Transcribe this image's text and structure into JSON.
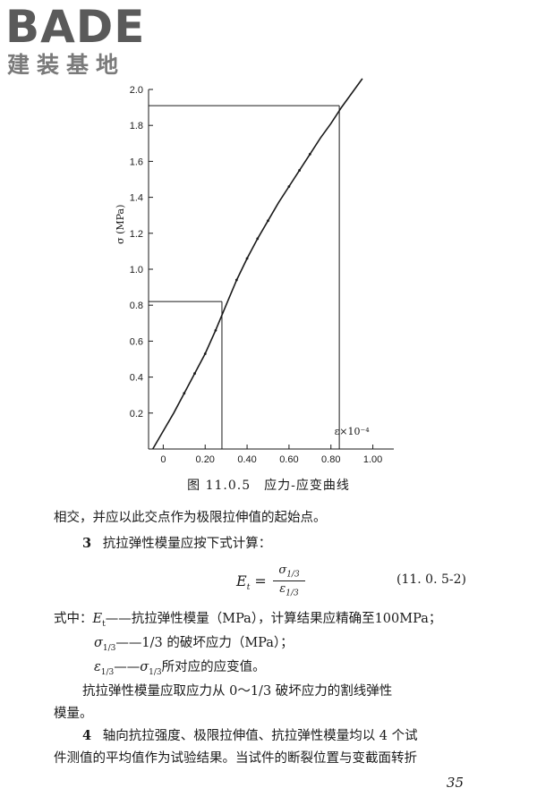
{
  "logo": {
    "main": "BADE",
    "sub": "建装基地"
  },
  "chart_data": {
    "type": "line",
    "ylabel": "σ (MPa)",
    "xlabel": "ε×10⁻⁴",
    "xlim": [
      -0.07,
      1.1
    ],
    "ylim": [
      0,
      2.0
    ],
    "x_ticks": [
      "0",
      "0.20",
      "0.40",
      "0.60",
      "0.80",
      "1.00"
    ],
    "x_tick_values": [
      0,
      0.2,
      0.4,
      0.6,
      0.8,
      1.0
    ],
    "y_ticks": [
      "0.2",
      "0.4",
      "0.6",
      "0.8",
      "1.0",
      "1.2",
      "1.4",
      "1.6",
      "1.8",
      "2.0"
    ],
    "y_tick_values": [
      0.2,
      0.4,
      0.6,
      0.8,
      1.0,
      1.2,
      1.4,
      1.6,
      1.8,
      2.0
    ],
    "series": [
      {
        "x": [
          -0.05,
          0.0,
          0.05,
          0.1,
          0.15,
          0.2,
          0.25,
          0.3,
          0.35,
          0.4,
          0.45,
          0.5,
          0.55,
          0.6,
          0.65,
          0.7,
          0.75,
          0.8,
          0.85,
          0.9,
          0.95
        ],
        "y": [
          0.0,
          0.1,
          0.2,
          0.31,
          0.42,
          0.53,
          0.66,
          0.8,
          0.94,
          1.06,
          1.17,
          1.27,
          1.37,
          1.46,
          1.55,
          1.64,
          1.73,
          1.81,
          1.9,
          1.98,
          2.06
        ]
      }
    ],
    "markers": {
      "x": [
        0.1,
        0.15,
        0.2,
        0.25,
        0.35,
        0.4,
        0.45,
        0.5,
        0.6,
        0.65,
        0.7
      ],
      "y": [
        0.31,
        0.42,
        0.53,
        0.66,
        0.94,
        1.06,
        1.17,
        1.27,
        1.46,
        1.55,
        1.64
      ]
    },
    "reference_points": [
      {
        "x": 0.28,
        "y": 0.82
      },
      {
        "x": 0.84,
        "y": 1.91
      }
    ],
    "grid": false
  },
  "caption": "图 11.0.5　应力-应变曲线",
  "text": {
    "line1": "相交，并应以此交点作为极限拉伸值的起始点。",
    "item3_num": "3",
    "item3_text": "抗拉弹性模量应按下式计算：",
    "eq_lhs": "E",
    "eq_lhs_sub": "t",
    "eq_eq": " =",
    "eq_num": "σ",
    "eq_num_sub": "1/3",
    "eq_den": "ε",
    "eq_den_sub": "1/3",
    "eq_no": "(11. 0. 5-2)",
    "def1_prefix": "式中：",
    "def1_sym": "E",
    "def1_sym_sub": "t",
    "def1_text": "——抗拉弹性模量（MPa），计算结果应精确至100MPa；",
    "def2_sym": "σ",
    "def2_sym_sub": "1/3",
    "def2_text": "——1/3 的破坏应力（MPa）；",
    "def3_sym": "ε",
    "def3_sym_sub": "1/3",
    "def3_mid": "——",
    "def3_sym2": "σ",
    "def3_sym2_sub": "1/3",
    "def3_text": "所对应的应变值。",
    "para_a": "抗拉弹性模量应取应力从 0～1/3 破坏应力的割线弹性",
    "para_b": "模量。",
    "item4_num": "4",
    "item4_a": "轴向抗拉强度、极限拉伸值、抗拉弹性模量均以 4 个试",
    "item4_b": "件测值的平均值作为试验结果。当试件的断裂位置与变截面转折"
  },
  "page_number": "35"
}
